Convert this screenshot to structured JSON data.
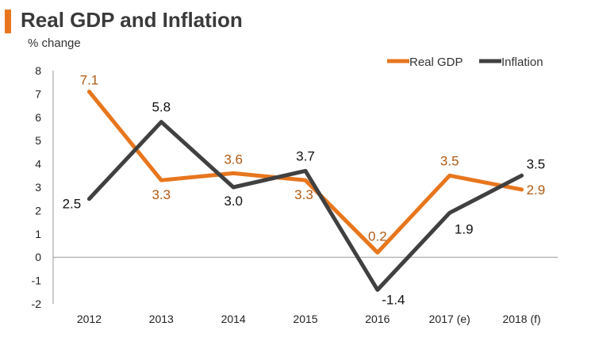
{
  "colors": {
    "accent": "#E8761E",
    "gdp": "#E8761E",
    "inflation": "#404040",
    "gdp_label": "#B15A14",
    "inflation_label": "#111111",
    "axis": "#999999"
  },
  "chart_data": {
    "type": "line",
    "title": "Real GDP and Inflation",
    "ylabel": "% change",
    "xlabel": "",
    "categories": [
      "2012",
      "2013",
      "2014",
      "2015",
      "2016",
      "2017 (e)",
      "2018 (f)"
    ],
    "ylim": [
      -2,
      8
    ],
    "yticks": [
      "8",
      "7",
      "6",
      "5",
      "4",
      "3",
      "2",
      "1",
      "0",
      "-1",
      "-2"
    ],
    "legend_position": "top-right",
    "series": [
      {
        "name": "Real GDP",
        "values": [
          7.1,
          3.3,
          3.6,
          3.3,
          0.2,
          3.5,
          2.9
        ],
        "labels": [
          "7.1",
          "3.3",
          "3.6",
          "3.3",
          "0.2",
          "3.5",
          "2.9"
        ]
      },
      {
        "name": "Inflation",
        "values": [
          2.5,
          5.8,
          3.0,
          3.7,
          -1.4,
          1.9,
          3.5
        ],
        "labels": [
          "2.5",
          "5.8",
          "3.0",
          "3.7",
          "-1.4",
          "1.9",
          "3.5"
        ]
      }
    ]
  }
}
